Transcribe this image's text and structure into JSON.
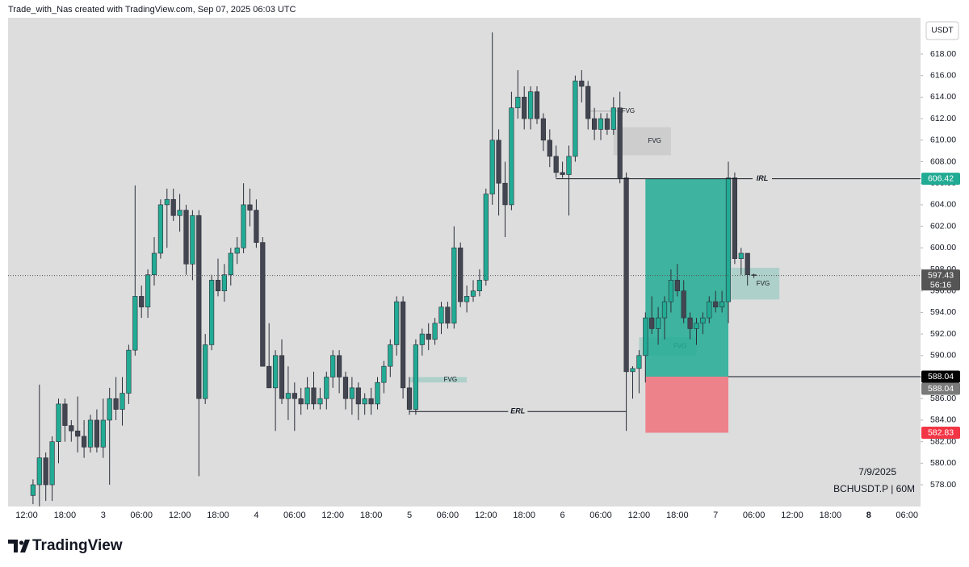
{
  "header": "Trade_with_Nas created with TradingView.com, Sep 07, 2025 06:03 UTC",
  "footer": "TradingView",
  "chart_data": {
    "type": "candlestick",
    "categories": [
      null,
      null,
      "12:00",
      null,
      null,
      null,
      null,
      null,
      "18:00",
      null,
      null,
      null,
      null,
      null,
      "3",
      null,
      null,
      null,
      null,
      null,
      "06:00",
      null,
      null,
      null,
      null,
      null,
      "12:00",
      null,
      null,
      null,
      null,
      null,
      "18:00",
      null,
      null,
      null,
      null,
      null,
      "4",
      null,
      null,
      null,
      null,
      null,
      "06:00",
      null,
      null,
      null,
      null,
      null,
      "12:00",
      null,
      null,
      null,
      null,
      null,
      "18:00",
      null,
      null,
      null,
      null,
      null,
      "5",
      null,
      null,
      null,
      null,
      null,
      "06:00",
      null,
      null,
      null,
      null,
      null,
      "12:00",
      null,
      null,
      null,
      null,
      null,
      "18:00",
      null,
      null,
      null,
      null,
      null,
      "6",
      null,
      null,
      null,
      null,
      null,
      "06:00",
      null,
      null,
      null,
      null,
      null,
      "12:00",
      null,
      null,
      null,
      null,
      null,
      "18:00",
      null,
      null,
      null,
      null,
      null,
      "7",
      null,
      null,
      null,
      null,
      null,
      "06:00",
      null,
      null,
      null,
      null,
      null,
      "12:00",
      null,
      null,
      null,
      null,
      null,
      "18:00",
      null,
      null,
      null,
      null,
      null,
      "8",
      null,
      null,
      null,
      null,
      null,
      "06:00",
      null
    ],
    "open": [
      null,
      null,
      null,
      577,
      578,
      580.5,
      578,
      582,
      585.5,
      583.5,
      583,
      582.5,
      581.5,
      584,
      581.5,
      584,
      586,
      585,
      586.5,
      590.5,
      595.5,
      594.5,
      597.5,
      599.5,
      604,
      604.5,
      603,
      603.5,
      598.5,
      603,
      586,
      591,
      597,
      596,
      597.5,
      599.5,
      600,
      604,
      603.5,
      600.5,
      589,
      587,
      590,
      586,
      586.5,
      586,
      585.5,
      587,
      585.5,
      586,
      588,
      590,
      588,
      586,
      587,
      585.5,
      586,
      585.5,
      587.5,
      589,
      591,
      595,
      587,
      585,
      591,
      592,
      591.5,
      593,
      594.5,
      593,
      600,
      595,
      595.5,
      596,
      597,
      605,
      610,
      606,
      604,
      613,
      614,
      612,
      614.5,
      612,
      610,
      608.5,
      607,
      606.8,
      608.5,
      615.5,
      615,
      612,
      611,
      612,
      611,
      613,
      606.5,
      588.5,
      588.8,
      590,
      593.5,
      592.5,
      593.5,
      595,
      597,
      596,
      593.5,
      592.5,
      593,
      593.5,
      595,
      594.5,
      595,
      606.5,
      599,
      599.5,
      597.5,
      null,
      null,
      null,
      null,
      null,
      null,
      null,
      null,
      null,
      null,
      null,
      null,
      null,
      null,
      null,
      null,
      null,
      null,
      null,
      null,
      null,
      null,
      null,
      null,
      null
    ],
    "high": [
      null,
      null,
      null,
      578.5,
      587.3,
      581,
      582.5,
      586,
      586,
      584,
      586.2,
      584,
      584.5,
      585,
      586,
      587,
      588,
      588,
      591,
      605.8,
      596.5,
      598,
      601,
      604.5,
      605.5,
      605.5,
      605,
      604,
      603.5,
      603.5,
      592,
      597.5,
      599,
      598.5,
      600,
      601,
      606,
      605.5,
      604.5,
      601,
      593,
      590.5,
      591.5,
      589,
      587.5,
      587,
      588,
      588.5,
      587,
      588.5,
      590.5,
      590.5,
      588.5,
      588,
      587.5,
      586.5,
      587,
      588,
      589.5,
      591.5,
      595.5,
      595.5,
      588,
      591.5,
      592.5,
      593,
      593.5,
      595,
      595,
      602,
      600.5,
      596.5,
      597,
      598,
      605.5,
      620,
      611,
      608,
      614.5,
      616.5,
      615,
      615,
      615,
      612.5,
      611,
      609.5,
      608,
      609.5,
      616,
      616.5,
      615.5,
      613,
      612.5,
      612.5,
      614,
      614.5,
      607,
      589,
      590.5,
      594,
      595.5,
      594.5,
      595.5,
      598,
      598.5,
      597,
      594,
      593.5,
      594,
      595.5,
      596,
      596,
      608,
      607,
      600,
      599.5,
      597.6,
      null,
      null,
      null,
      null,
      null,
      null,
      null,
      null,
      null,
      null,
      null,
      null,
      null,
      null,
      null,
      null,
      null,
      null,
      null,
      null,
      null,
      null,
      null,
      null,
      null
    ],
    "low": [
      null,
      null,
      null,
      576.2,
      576,
      576.5,
      576.5,
      580,
      582,
      582,
      581,
      580.5,
      581,
      581,
      580.5,
      578,
      584,
      583.5,
      585.5,
      590,
      593.5,
      593.5,
      596.5,
      599,
      600,
      602.5,
      601.5,
      597.5,
      597,
      578.8,
      585.5,
      590.5,
      595.5,
      595,
      596.5,
      598.5,
      599.5,
      602,
      600,
      589,
      587,
      583,
      585.5,
      584,
      583,
      584.5,
      585,
      585,
      585,
      585,
      587,
      586.5,
      585,
      584.5,
      584,
      584.5,
      584.5,
      585,
      586.5,
      588,
      590,
      586,
      584.5,
      584.5,
      590,
      590.5,
      591,
      592,
      592.5,
      592.5,
      594.5,
      594,
      595,
      595.5,
      596.5,
      604,
      603,
      601,
      603.5,
      612,
      611,
      611,
      611.5,
      609,
      607.5,
      606.5,
      606.5,
      603,
      608,
      613.5,
      611,
      610,
      610,
      610.5,
      610.5,
      606,
      583,
      586,
      586.5,
      587.5,
      592,
      591,
      591.5,
      594,
      595.5,
      593,
      591.5,
      591,
      592,
      593,
      594,
      594,
      593,
      598.5,
      597.5,
      596.5,
      597.2,
      null,
      null,
      null,
      null,
      null,
      null,
      null,
      null,
      null,
      null,
      null,
      null,
      null,
      null,
      null,
      null,
      null,
      null,
      null,
      null,
      null,
      null,
      null,
      null,
      null
    ],
    "close": [
      null,
      null,
      null,
      578,
      580.5,
      578,
      582,
      585.5,
      583.5,
      583,
      582.5,
      581.5,
      584,
      581.5,
      584,
      586,
      585,
      586.5,
      590.5,
      595.5,
      594.5,
      597.5,
      599.5,
      604,
      604.5,
      603,
      603.5,
      598.5,
      603,
      586,
      591,
      597,
      596,
      597.5,
      599.5,
      600,
      604,
      603.5,
      600.5,
      589,
      587,
      590,
      586,
      586.5,
      586,
      585.5,
      587,
      585.5,
      586,
      588,
      590,
      588,
      586,
      587,
      585.5,
      586,
      585.5,
      587.5,
      589,
      591,
      595,
      587,
      585,
      591,
      592,
      591.5,
      593,
      594.5,
      593,
      600,
      595,
      595.5,
      596,
      597,
      605,
      610,
      606,
      604,
      613,
      614,
      612,
      614.5,
      612,
      610,
      608.5,
      607,
      606.8,
      608.5,
      615.5,
      615,
      612,
      611,
      612,
      611,
      613,
      606.5,
      588.5,
      588.8,
      590,
      593.5,
      592.5,
      593.5,
      595,
      597,
      596,
      593.5,
      592.5,
      593,
      593.5,
      595,
      594.5,
      595,
      606.5,
      599,
      599.5,
      597.5,
      597.43,
      null,
      null,
      null,
      null,
      null,
      null,
      null,
      null,
      null,
      null,
      null,
      null,
      null,
      null,
      null,
      null,
      null,
      null,
      null,
      null,
      null,
      null,
      null,
      null,
      null
    ],
    "up_color": "#22ab94",
    "down_color": "#434651",
    "ylim": [
      575.98,
      621.37
    ],
    "yticks": [
      {
        "value": 578,
        "label": "578.00"
      },
      {
        "value": 580,
        "label": "580.00"
      },
      {
        "value": 582,
        "label": "582.00"
      },
      {
        "value": 584,
        "label": "584.00"
      },
      {
        "value": 586,
        "label": "586.00"
      },
      {
        "value": 588,
        "label": "588.00"
      },
      {
        "value": 590,
        "label": "590.00"
      },
      {
        "value": 592,
        "label": "592.00"
      },
      {
        "value": 594,
        "label": "594.00"
      },
      {
        "value": 596,
        "label": "596.00"
      },
      {
        "value": 598,
        "label": "598.00"
      },
      {
        "value": 600,
        "label": "600.00"
      },
      {
        "value": 602,
        "label": "602.00"
      },
      {
        "value": 604,
        "label": "604.00"
      },
      {
        "value": 606,
        "label": "606.00"
      },
      {
        "value": 608,
        "label": "608.00"
      },
      {
        "value": 610,
        "label": "610.00"
      },
      {
        "value": 612,
        "label": "612.00"
      },
      {
        "value": 614,
        "label": "614.00"
      },
      {
        "value": 616,
        "label": "616.00"
      },
      {
        "value": 618,
        "label": "618.00"
      }
    ],
    "currency": "USDT",
    "zones": [
      {
        "label": "FVG",
        "x0": 90,
        "x1": 95,
        "top": 612.75,
        "bottom": 612.65,
        "color": "#9e9e9e"
      },
      {
        "label": "FVG",
        "x0": 94,
        "x1": 103,
        "top": 611.2,
        "bottom": 608.6,
        "color": "#9e9e9e"
      },
      {
        "label": "FVG",
        "x0": 112.5,
        "x1": 120,
        "top": 598.15,
        "bottom": 595.2,
        "color": "#22ab94"
      },
      {
        "label": "FVG",
        "x0": 98,
        "x1": 107,
        "top": 591.7,
        "bottom": 590.0,
        "color": "#22ab94"
      },
      {
        "label": "FVG",
        "x0": 62,
        "x1": 71,
        "top": 588.0,
        "bottom": 587.5,
        "color": "#22ab94"
      }
    ],
    "position": {
      "x0": 99,
      "x1": 112,
      "target": 606.42,
      "entry": 588.04,
      "stop": 582.83,
      "profit_color": "#22ab94",
      "loss_color": "#f7525f"
    },
    "levels": [
      {
        "label": "IRL",
        "value": 606.42,
        "x0": 85,
        "extend": true
      },
      {
        "label": "ERL",
        "value": 584.8,
        "x0": 62,
        "x1": 96
      },
      {
        "value": 588.04,
        "x0": 112,
        "extend": true
      }
    ],
    "price_labels": [
      {
        "value": 606.42,
        "color": "#22ab94"
      },
      {
        "value": 597.43,
        "color": "#555555",
        "countdown": "56:16",
        "dotted": true
      },
      {
        "value": 588.04,
        "color": "#000000"
      },
      {
        "value": 588.04,
        "color": "#7a7a7a"
      },
      {
        "value": 582.83,
        "color": "#f23645"
      }
    ],
    "watermark": {
      "date": "7/9/2025",
      "symbol": "BCHUSDT.P | 60M"
    }
  }
}
